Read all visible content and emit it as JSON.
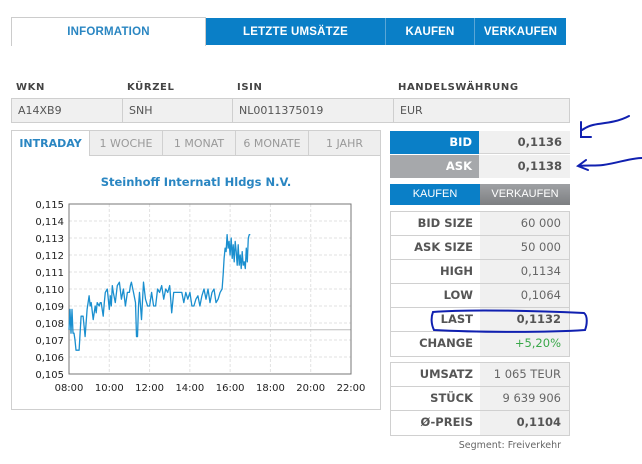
{
  "top_tabs": [
    {
      "label": "INFORMATION",
      "active": true
    },
    {
      "label": "LETZTE UMSÄTZE",
      "active": false
    },
    {
      "label": "KAUFEN",
      "active": false
    },
    {
      "label": "VERKAUFEN",
      "active": false
    }
  ],
  "info": {
    "headers": [
      "WKN",
      "KÜRZEL",
      "ISIN",
      "HANDELSWÄHRUNG"
    ],
    "values": [
      "A14XB9",
      "SNH",
      "NL0011375019",
      "EUR"
    ]
  },
  "chart_tabs": [
    {
      "label": "INTRADAY",
      "active": true
    },
    {
      "label": "1 WOCHE",
      "active": false
    },
    {
      "label": "1 MONAT",
      "active": false
    },
    {
      "label": "6 MONATE",
      "active": false
    },
    {
      "label": "1 JAHR",
      "active": false
    }
  ],
  "chart_title": "Steinhoff Internatl Hldgs N.V.",
  "chart_data": {
    "type": "line",
    "title": "Steinhoff Internatl Hldgs N.V.",
    "xlabel": "",
    "ylabel": "",
    "x_ticks": [
      "08:00",
      "10:00",
      "12:00",
      "14:00",
      "16:00",
      "18:00",
      "20:00",
      "22:00"
    ],
    "y_ticks": [
      "0,105",
      "0,106",
      "0,107",
      "0,108",
      "0,109",
      "0,110",
      "0,111",
      "0,112",
      "0,113",
      "0,114",
      "0,115"
    ],
    "xlim_hours": [
      8,
      22
    ],
    "ylim": [
      0.105,
      0.115
    ],
    "grid": true,
    "reference_line": 0.1076,
    "series": [
      {
        "name": "Intraday",
        "color": "#1a8fcf",
        "x_hours": [
          8.0,
          8.05,
          8.1,
          8.15,
          8.2,
          8.25,
          8.3,
          8.35,
          8.4,
          8.5,
          8.6,
          8.7,
          8.8,
          8.9,
          9.0,
          9.05,
          9.1,
          9.2,
          9.3,
          9.35,
          9.4,
          9.5,
          9.55,
          9.6,
          9.7,
          9.75,
          9.8,
          9.9,
          10.0,
          10.05,
          10.1,
          10.15,
          10.2,
          10.3,
          10.4,
          10.5,
          10.6,
          10.7,
          10.8,
          10.9,
          11.0,
          11.05,
          11.1,
          11.2,
          11.3,
          11.35,
          11.4,
          11.45,
          11.5,
          11.6,
          11.7,
          11.8,
          11.9,
          12.0,
          12.1,
          12.2,
          12.3,
          12.4,
          12.5,
          12.6,
          12.7,
          12.8,
          12.9,
          13.0,
          13.1,
          13.2,
          13.3,
          13.4,
          13.5,
          13.6,
          13.7,
          13.8,
          13.9,
          14.0,
          14.1,
          14.2,
          14.3,
          14.4,
          14.5,
          14.6,
          14.7,
          14.8,
          14.9,
          15.0,
          15.1,
          15.2,
          15.3,
          15.4,
          15.5,
          15.6,
          15.65,
          15.7,
          15.75,
          15.8,
          15.85,
          15.9,
          15.95,
          16.0,
          16.05,
          16.1,
          16.15,
          16.2,
          16.25,
          16.3,
          16.35,
          16.4,
          16.45,
          16.5,
          16.55,
          16.6,
          16.65,
          16.7,
          16.75,
          16.8,
          16.85,
          16.9,
          16.95,
          17.0,
          17.05,
          17.1
        ],
        "values": [
          0.1076,
          0.1088,
          0.1074,
          0.1088,
          0.1074,
          0.1074,
          0.107,
          0.1064,
          0.1064,
          0.1064,
          0.1084,
          0.1084,
          0.1072,
          0.1088,
          0.1096,
          0.109,
          0.1092,
          0.1082,
          0.109,
          0.1086,
          0.1092,
          0.109,
          0.1092,
          0.1092,
          0.1084,
          0.1092,
          0.1098,
          0.11,
          0.1088,
          0.1096,
          0.109,
          0.1102,
          0.1098,
          0.1092,
          0.1102,
          0.1104,
          0.1094,
          0.11,
          0.109,
          0.1098,
          0.1098,
          0.1102,
          0.1104,
          0.1098,
          0.1092,
          0.1072,
          0.1072,
          0.109,
          0.1098,
          0.1082,
          0.1104,
          0.1094,
          0.109,
          0.109,
          0.1098,
          0.109,
          0.109,
          0.11,
          0.1098,
          0.1102,
          0.1094,
          0.11,
          0.1098,
          0.1102,
          0.1086,
          0.1098,
          0.1098,
          0.1098,
          0.1098,
          0.1098,
          0.1092,
          0.1098,
          0.1094,
          0.1098,
          0.109,
          0.109,
          0.1094,
          0.1096,
          0.109,
          0.1096,
          0.11,
          0.1094,
          0.11,
          0.1092,
          0.1098,
          0.11,
          0.1092,
          0.1094,
          0.1098,
          0.11,
          0.1108,
          0.1118,
          0.1124,
          0.1122,
          0.1132,
          0.1124,
          0.1128,
          0.112,
          0.113,
          0.1118,
          0.1126,
          0.1116,
          0.1128,
          0.1122,
          0.1114,
          0.1126,
          0.1114,
          0.112,
          0.1112,
          0.1122,
          0.1114,
          0.1116,
          0.1112,
          0.1124,
          0.1116,
          0.113,
          0.1132,
          0.1132
        ]
      }
    ]
  },
  "quote": {
    "bid_label": "BID",
    "bid_value": "0,1136",
    "ask_label": "ASK",
    "ask_value": "0,1138"
  },
  "trade_buttons": {
    "buy": "KAUFEN",
    "sell": "VERKAUFEN"
  },
  "stats": [
    {
      "label": "BID SIZE",
      "value": "60 000"
    },
    {
      "label": "ASK SIZE",
      "value": "50 000"
    },
    {
      "label": "HIGH",
      "value": "0,1134"
    },
    {
      "label": "LOW",
      "value": "0,1064"
    },
    {
      "label": "LAST",
      "value": "0,1132"
    },
    {
      "label": "CHANGE",
      "value": "+5,20%"
    }
  ],
  "volume": [
    {
      "label": "UMSATZ",
      "value": "1 065 TEUR"
    },
    {
      "label": "STÜCK",
      "value": "9 639 906"
    },
    {
      "label": "Ø-PREIS",
      "value": "0,1104"
    }
  ],
  "segment": "Segment: Freiverkehr",
  "colors": {
    "accent_blue": "#0a7fc7",
    "text_blue": "#2a86c2",
    "ask_grey": "#a6a8ab",
    "change_green": "#3aa84a",
    "annotation_ink": "#1020b0"
  }
}
